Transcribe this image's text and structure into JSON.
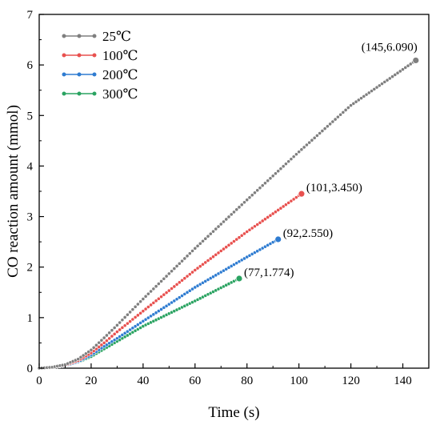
{
  "chart_data": {
    "type": "line",
    "xlabel": "Time (s)",
    "ylabel": "CO reaction amount (mmol)",
    "xlim": [
      0,
      150
    ],
    "ylim": [
      0,
      7
    ],
    "xticks": [
      0,
      20,
      40,
      60,
      80,
      100,
      120,
      140
    ],
    "yticks": [
      0,
      1,
      2,
      3,
      4,
      5,
      6,
      7
    ],
    "grid": false,
    "legend_position": "top-left",
    "series": [
      {
        "name": "25℃",
        "color": "#7f7f7f",
        "x": [
          0,
          5,
          10,
          15,
          20,
          25,
          30,
          40,
          60,
          80,
          100,
          120,
          145
        ],
        "y": [
          0,
          0.02,
          0.07,
          0.18,
          0.36,
          0.6,
          0.85,
          1.37,
          2.37,
          3.33,
          4.28,
          5.2,
          6.09
        ],
        "end_label": "(145,6.090)"
      },
      {
        "name": "100℃",
        "color": "#e8514f",
        "x": [
          0,
          5,
          10,
          15,
          20,
          25,
          30,
          40,
          60,
          80,
          101
        ],
        "y": [
          0,
          0.02,
          0.06,
          0.15,
          0.3,
          0.5,
          0.72,
          1.13,
          1.94,
          2.7,
          3.45
        ],
        "end_label": "(101,3.450)"
      },
      {
        "name": "200℃",
        "color": "#2f7cd1",
        "x": [
          0,
          5,
          10,
          15,
          20,
          25,
          30,
          40,
          60,
          80,
          92
        ],
        "y": [
          0,
          0.02,
          0.05,
          0.13,
          0.26,
          0.43,
          0.59,
          0.93,
          1.6,
          2.2,
          2.55
        ],
        "end_label": "(92,2.550)"
      },
      {
        "name": "300℃",
        "color": "#2aa361",
        "x": [
          0,
          5,
          10,
          15,
          20,
          25,
          30,
          40,
          60,
          77
        ],
        "y": [
          0,
          0.02,
          0.05,
          0.12,
          0.23,
          0.38,
          0.53,
          0.83,
          1.33,
          1.774
        ],
        "end_label": "(77,1.774)"
      }
    ]
  }
}
